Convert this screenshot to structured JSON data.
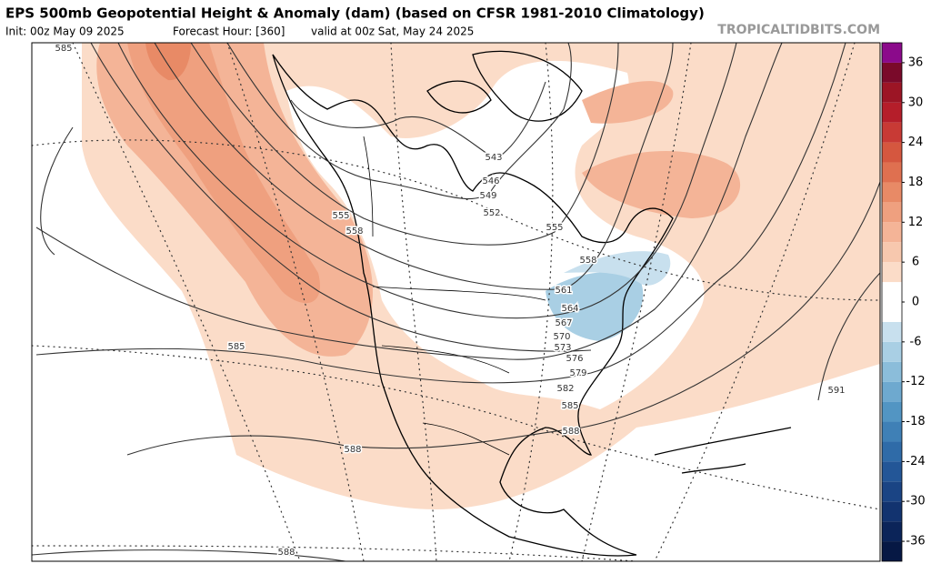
{
  "header": {
    "title": "EPS 500mb Geopotential Height & Anomaly (dam) (based on CFSR 1981-2010 Climatology)",
    "init": "Init: 00z May 09 2025",
    "forecast_hour": "Forecast Hour: [360]",
    "valid": "valid at 00z Sat, May 24 2025",
    "source": "TROPICALTIDBITS.COM"
  },
  "colorbar": {
    "lim": [
      -39,
      39
    ],
    "ticks": [
      36,
      30,
      24,
      18,
      12,
      6,
      0,
      -6,
      -12,
      -18,
      -24,
      -30,
      -36
    ],
    "colors": [
      "#061844",
      "#0b2459",
      "#12336f",
      "#1a4484",
      "#235697",
      "#2f6ba8",
      "#3f80b6",
      "#5295c3",
      "#6ea9cf",
      "#8bbdda",
      "#a9cfe4",
      "#c8e0ee",
      "#ffffff",
      "#ffffff",
      "#fbdcc8",
      "#f7c8ae",
      "#f4b497",
      "#efa07f",
      "#e88a66",
      "#df7050",
      "#d5573f",
      "#c83a35",
      "#b51e2a",
      "#9c1525",
      "#7a0a2a",
      "#8b0a8b"
    ]
  },
  "contour_labels": [
    "585",
    "543",
    "546",
    "549",
    "552",
    "555",
    "558",
    "555",
    "558",
    "561",
    "564",
    "567",
    "570",
    "573",
    "576",
    "579",
    "582",
    "585",
    "588",
    "585",
    "588",
    "591",
    "588"
  ]
}
